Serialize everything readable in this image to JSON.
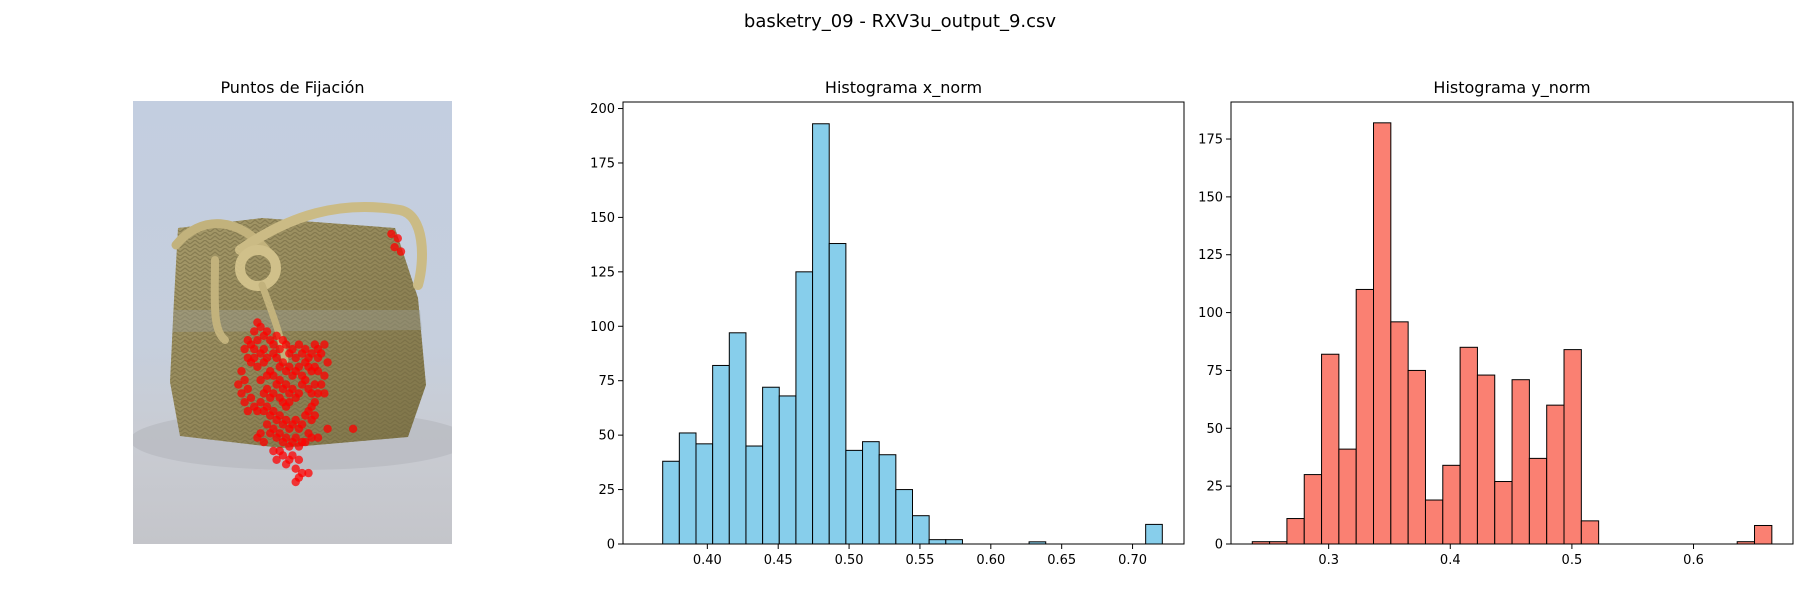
{
  "figure": {
    "suptitle": "basketry_09 - RXV3u_output_9.csv"
  },
  "colors": {
    "x_hist_fill": "#87ceeb",
    "y_hist_fill": "#fa8072",
    "edge": "#000000",
    "fixation_point": "#ff0000"
  },
  "chart_data": [
    {
      "type": "scatter",
      "title": "Puntos de Fijación",
      "axes": "off",
      "background": "photo of a woven esparto basketry bag with rope handle",
      "marker_color": "#ff0000",
      "points": [
        [
          0.38,
          0.52
        ],
        [
          0.39,
          0.5
        ],
        [
          0.4,
          0.51
        ],
        [
          0.41,
          0.53
        ],
        [
          0.42,
          0.52
        ],
        [
          0.43,
          0.54
        ],
        [
          0.44,
          0.55
        ],
        [
          0.45,
          0.53
        ],
        [
          0.37,
          0.55
        ],
        [
          0.38,
          0.56
        ],
        [
          0.4,
          0.57
        ],
        [
          0.41,
          0.56
        ],
        [
          0.39,
          0.54
        ],
        [
          0.42,
          0.58
        ],
        [
          0.44,
          0.57
        ],
        [
          0.46,
          0.56
        ],
        [
          0.47,
          0.54
        ],
        [
          0.48,
          0.55
        ],
        [
          0.49,
          0.57
        ],
        [
          0.5,
          0.56
        ],
        [
          0.51,
          0.58
        ],
        [
          0.52,
          0.55
        ],
        [
          0.53,
          0.57
        ],
        [
          0.54,
          0.56
        ],
        [
          0.55,
          0.58
        ],
        [
          0.56,
          0.57
        ],
        [
          0.57,
          0.55
        ],
        [
          0.58,
          0.56
        ],
        [
          0.45,
          0.58
        ],
        [
          0.46,
          0.6
        ],
        [
          0.47,
          0.59
        ],
        [
          0.48,
          0.61
        ],
        [
          0.49,
          0.6
        ],
        [
          0.5,
          0.62
        ],
        [
          0.51,
          0.61
        ],
        [
          0.52,
          0.6
        ],
        [
          0.53,
          0.62
        ],
        [
          0.44,
          0.62
        ],
        [
          0.45,
          0.64
        ],
        [
          0.46,
          0.63
        ],
        [
          0.47,
          0.65
        ],
        [
          0.48,
          0.64
        ],
        [
          0.49,
          0.66
        ],
        [
          0.5,
          0.65
        ],
        [
          0.51,
          0.67
        ],
        [
          0.52,
          0.66
        ],
        [
          0.53,
          0.64
        ],
        [
          0.54,
          0.63
        ],
        [
          0.55,
          0.65
        ],
        [
          0.56,
          0.66
        ],
        [
          0.57,
          0.64
        ],
        [
          0.34,
          0.61
        ],
        [
          0.35,
          0.63
        ],
        [
          0.33,
          0.64
        ],
        [
          0.36,
          0.65
        ],
        [
          0.34,
          0.66
        ],
        [
          0.35,
          0.68
        ],
        [
          0.37,
          0.67
        ],
        [
          0.38,
          0.69
        ],
        [
          0.36,
          0.7
        ],
        [
          0.39,
          0.7
        ],
        [
          0.4,
          0.68
        ],
        [
          0.41,
          0.7
        ],
        [
          0.42,
          0.69
        ],
        [
          0.43,
          0.71
        ],
        [
          0.44,
          0.7
        ],
        [
          0.45,
          0.72
        ],
        [
          0.46,
          0.71
        ],
        [
          0.47,
          0.73
        ],
        [
          0.48,
          0.72
        ],
        [
          0.49,
          0.74
        ],
        [
          0.5,
          0.73
        ],
        [
          0.51,
          0.72
        ],
        [
          0.52,
          0.74
        ],
        [
          0.53,
          0.73
        ],
        [
          0.54,
          0.71
        ],
        [
          0.55,
          0.7
        ],
        [
          0.56,
          0.72
        ],
        [
          0.42,
          0.73
        ],
        [
          0.43,
          0.75
        ],
        [
          0.44,
          0.74
        ],
        [
          0.45,
          0.76
        ],
        [
          0.46,
          0.75
        ],
        [
          0.47,
          0.77
        ],
        [
          0.48,
          0.76
        ],
        [
          0.49,
          0.78
        ],
        [
          0.5,
          0.77
        ],
        [
          0.51,
          0.76
        ],
        [
          0.52,
          0.78
        ],
        [
          0.53,
          0.77
        ],
        [
          0.4,
          0.75
        ],
        [
          0.41,
          0.77
        ],
        [
          0.39,
          0.76
        ],
        [
          0.46,
          0.79
        ],
        [
          0.47,
          0.8
        ],
        [
          0.48,
          0.82
        ],
        [
          0.49,
          0.81
        ],
        [
          0.5,
          0.8
        ],
        [
          0.51,
          0.83
        ],
        [
          0.52,
          0.81
        ],
        [
          0.58,
          0.61
        ],
        [
          0.6,
          0.55
        ],
        [
          0.61,
          0.74
        ],
        [
          0.58,
          0.76
        ],
        [
          0.69,
          0.74
        ],
        [
          0.55,
          0.84
        ],
        [
          0.41,
          0.59
        ],
        [
          0.43,
          0.61
        ],
        [
          0.4,
          0.63
        ],
        [
          0.39,
          0.6
        ],
        [
          0.37,
          0.59
        ],
        [
          0.36,
          0.58
        ],
        [
          0.44,
          0.66
        ],
        [
          0.42,
          0.65
        ],
        [
          0.41,
          0.66
        ],
        [
          0.43,
          0.67
        ],
        [
          0.42,
          0.62
        ],
        [
          0.55,
          0.6
        ],
        [
          0.56,
          0.61
        ],
        [
          0.54,
          0.59
        ],
        [
          0.57,
          0.6
        ],
        [
          0.58,
          0.58
        ],
        [
          0.59,
          0.57
        ],
        [
          0.57,
          0.68
        ],
        [
          0.56,
          0.69
        ],
        [
          0.57,
          0.71
        ],
        [
          0.83,
          0.31
        ],
        [
          0.82,
          0.33
        ],
        [
          0.84,
          0.34
        ],
        [
          0.81,
          0.3
        ],
        [
          0.47,
          0.68
        ],
        [
          0.48,
          0.69
        ],
        [
          0.49,
          0.68
        ],
        [
          0.46,
          0.67
        ],
        [
          0.35,
          0.56
        ],
        [
          0.36,
          0.54
        ],
        [
          0.38,
          0.58
        ],
        [
          0.6,
          0.62
        ],
        [
          0.61,
          0.59
        ],
        [
          0.59,
          0.64
        ],
        [
          0.6,
          0.66
        ],
        [
          0.58,
          0.66
        ],
        [
          0.55,
          0.75
        ],
        [
          0.54,
          0.77
        ],
        [
          0.56,
          0.76
        ],
        [
          0.45,
          0.81
        ],
        [
          0.44,
          0.79
        ],
        [
          0.52,
          0.85
        ],
        [
          0.53,
          0.84
        ],
        [
          0.51,
          0.86
        ]
      ]
    },
    {
      "type": "bar",
      "title": "Histograma x_norm",
      "xlim": [
        0.3405,
        0.7363
      ],
      "ylim": [
        0,
        203
      ],
      "bin_start": 0.3685,
      "bin_width": 0.01175,
      "values": [
        38,
        51,
        46,
        82,
        97,
        45,
        72,
        68,
        125,
        193,
        138,
        43,
        47,
        41,
        25,
        13,
        2,
        2,
        0,
        0,
        0,
        0,
        1,
        0,
        0,
        0,
        0,
        0,
        0,
        9
      ],
      "xticks": [
        0.4,
        0.45,
        0.5,
        0.55,
        0.6,
        0.65,
        0.7
      ],
      "xtick_labels": [
        "0.40",
        "0.45",
        "0.50",
        "0.55",
        "0.60",
        "0.65",
        "0.70"
      ],
      "yticks": [
        0,
        25,
        50,
        75,
        100,
        125,
        150,
        175,
        200
      ],
      "ytick_labels": [
        "0",
        "25",
        "50",
        "75",
        "100",
        "125",
        "150",
        "175",
        "200"
      ],
      "color": "#87ceeb",
      "grid": false
    },
    {
      "type": "bar",
      "title": "Histograma y_norm",
      "xlim": [
        0.2197,
        0.6818
      ],
      "ylim": [
        0,
        191
      ],
      "bin_start": 0.2372,
      "bin_width": 0.01424,
      "values": [
        1,
        1,
        11,
        30,
        82,
        41,
        110,
        182,
        96,
        75,
        19,
        34,
        85,
        73,
        27,
        71,
        37,
        60,
        84,
        10,
        0,
        0,
        0,
        0,
        0,
        0,
        0,
        0,
        1,
        8
      ],
      "xticks": [
        0.3,
        0.4,
        0.5,
        0.6
      ],
      "xtick_labels": [
        "0.3",
        "0.4",
        "0.5",
        "0.6"
      ],
      "yticks": [
        0,
        25,
        50,
        75,
        100,
        125,
        150,
        175
      ],
      "ytick_labels": [
        "0",
        "25",
        "50",
        "75",
        "100",
        "125",
        "150",
        "175"
      ],
      "color": "#fa8072",
      "grid": false
    }
  ]
}
